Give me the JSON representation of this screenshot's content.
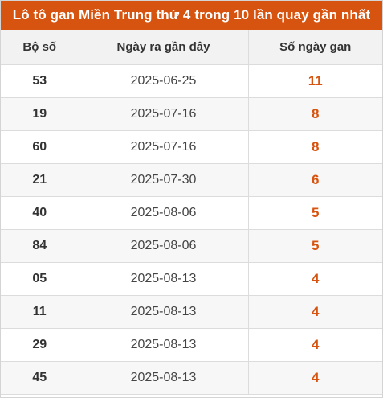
{
  "title": "Lô tô gan Miền Trung thứ 4 trong 10 lần quay gần nhất",
  "colors": {
    "header_bg": "#d75410",
    "accent_text": "#d75410"
  },
  "table": {
    "headers": [
      "Bộ số",
      "Ngày ra gần đây",
      "Số ngày gan"
    ],
    "rows": [
      {
        "number": "53",
        "date": "2025-06-25",
        "days": "11"
      },
      {
        "number": "19",
        "date": "2025-07-16",
        "days": "8"
      },
      {
        "number": "60",
        "date": "2025-07-16",
        "days": "8"
      },
      {
        "number": "21",
        "date": "2025-07-30",
        "days": "6"
      },
      {
        "number": "40",
        "date": "2025-08-06",
        "days": "5"
      },
      {
        "number": "84",
        "date": "2025-08-06",
        "days": "5"
      },
      {
        "number": "05",
        "date": "2025-08-13",
        "days": "4"
      },
      {
        "number": "11",
        "date": "2025-08-13",
        "days": "4"
      },
      {
        "number": "29",
        "date": "2025-08-13",
        "days": "4"
      },
      {
        "number": "45",
        "date": "2025-08-13",
        "days": "4"
      }
    ]
  }
}
